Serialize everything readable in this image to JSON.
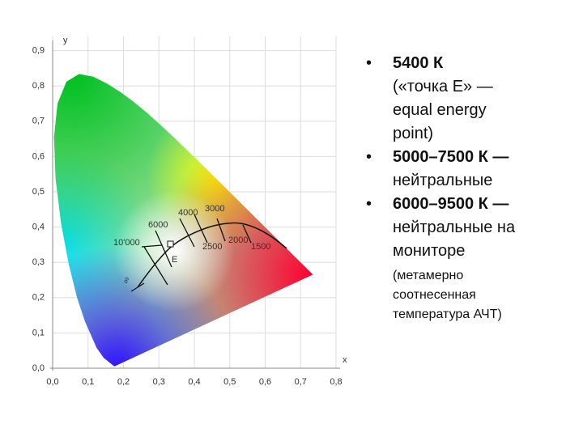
{
  "figure": {
    "x_axis_label": "x",
    "y_axis_label": "y",
    "xticks": [
      "0,0",
      "0,1",
      "0,2",
      "0,3",
      "0,4",
      "0,5",
      "0,6",
      "0,7",
      "0,8"
    ],
    "yticks": [
      "0,0",
      "0,1",
      "0,2",
      "0,3",
      "0,4",
      "0,5",
      "0,6",
      "0,7",
      "0,8",
      "0,9"
    ],
    "annotations": [
      "10'000",
      "6000",
      "4000",
      "3000",
      "2500",
      "2000",
      "1500",
      "∞",
      "E"
    ]
  },
  "bullets": [
    {
      "heading": "5400 К",
      "lines": [
        "(«точка E» —",
        "equal energy",
        "point)"
      ]
    },
    {
      "heading": "5000–7500 К —",
      "lines": [
        "нейтральные"
      ]
    },
    {
      "heading": "6000–9500 К —",
      "lines": [
        "нейтральные на",
        "мониторе"
      ]
    }
  ],
  "note": [
    "(метамерно",
    "соотнесенная",
    "температура АЧТ)"
  ]
}
